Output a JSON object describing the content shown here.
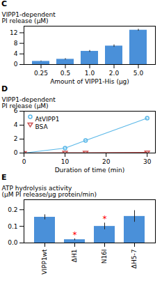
{
  "chart_data": [
    {
      "type": "bar",
      "title": "C",
      "categories": [
        "0.25",
        "0.5",
        "1.0",
        "2.0",
        "5.0"
      ],
      "values": [
        1.2,
        2.0,
        5.0,
        7.0,
        13.0
      ],
      "errors": [
        0.15,
        0.25,
        0.35,
        0.45,
        0.35
      ],
      "color": "#4a90d9",
      "xlabel": "Amount of VIPP1-His (μg)",
      "ylabel": "VIPP1-dependent\nPI release (μM)",
      "ylim": [
        0,
        14.5
      ],
      "yticks": [
        0,
        4,
        8,
        12
      ]
    },
    {
      "type": "line",
      "title": "D",
      "x": [
        0,
        10,
        15,
        30
      ],
      "series": [
        {
          "name": "AtVIPP1",
          "color": "#5bb8e8",
          "marker": "circle",
          "values": [
            0,
            0.7,
            1.8,
            5.0
          ]
        },
        {
          "name": "BSA",
          "color": "#cc5555",
          "marker": "triangle-down",
          "values": [
            0,
            0.04,
            0.05,
            0.08
          ]
        }
      ],
      "xlabel": "Duration of time (min)",
      "ylabel": "VIPP1-dependent\nPI release (μM)",
      "xlim": [
        0,
        32
      ],
      "xticks": [
        0,
        10,
        20,
        30
      ],
      "ylim": [
        0,
        6
      ],
      "yticks": [
        0,
        2,
        4,
        6
      ],
      "legend": "upper left"
    },
    {
      "type": "bar",
      "title": "E",
      "categories": [
        "VIPP1wt",
        "ΔH1",
        "N16I",
        "ΔH5-7"
      ],
      "values": [
        0.155,
        0.02,
        0.1,
        0.16
      ],
      "errors": [
        0.015,
        0.005,
        0.02,
        0.035
      ],
      "color": "#4a90d9",
      "ylabel": "ATP hydrolysis activity\n(μM PI release/μg protein/min)",
      "ylim": [
        0,
        0.26
      ],
      "yticks": [
        {
          "value": 0,
          "label": "0.0"
        },
        0.1,
        0.2
      ],
      "annotations": [
        {
          "category": "ΔH1",
          "text": "*",
          "color": "red"
        },
        {
          "category": "N16I",
          "text": "*",
          "color": "red"
        }
      ]
    }
  ]
}
